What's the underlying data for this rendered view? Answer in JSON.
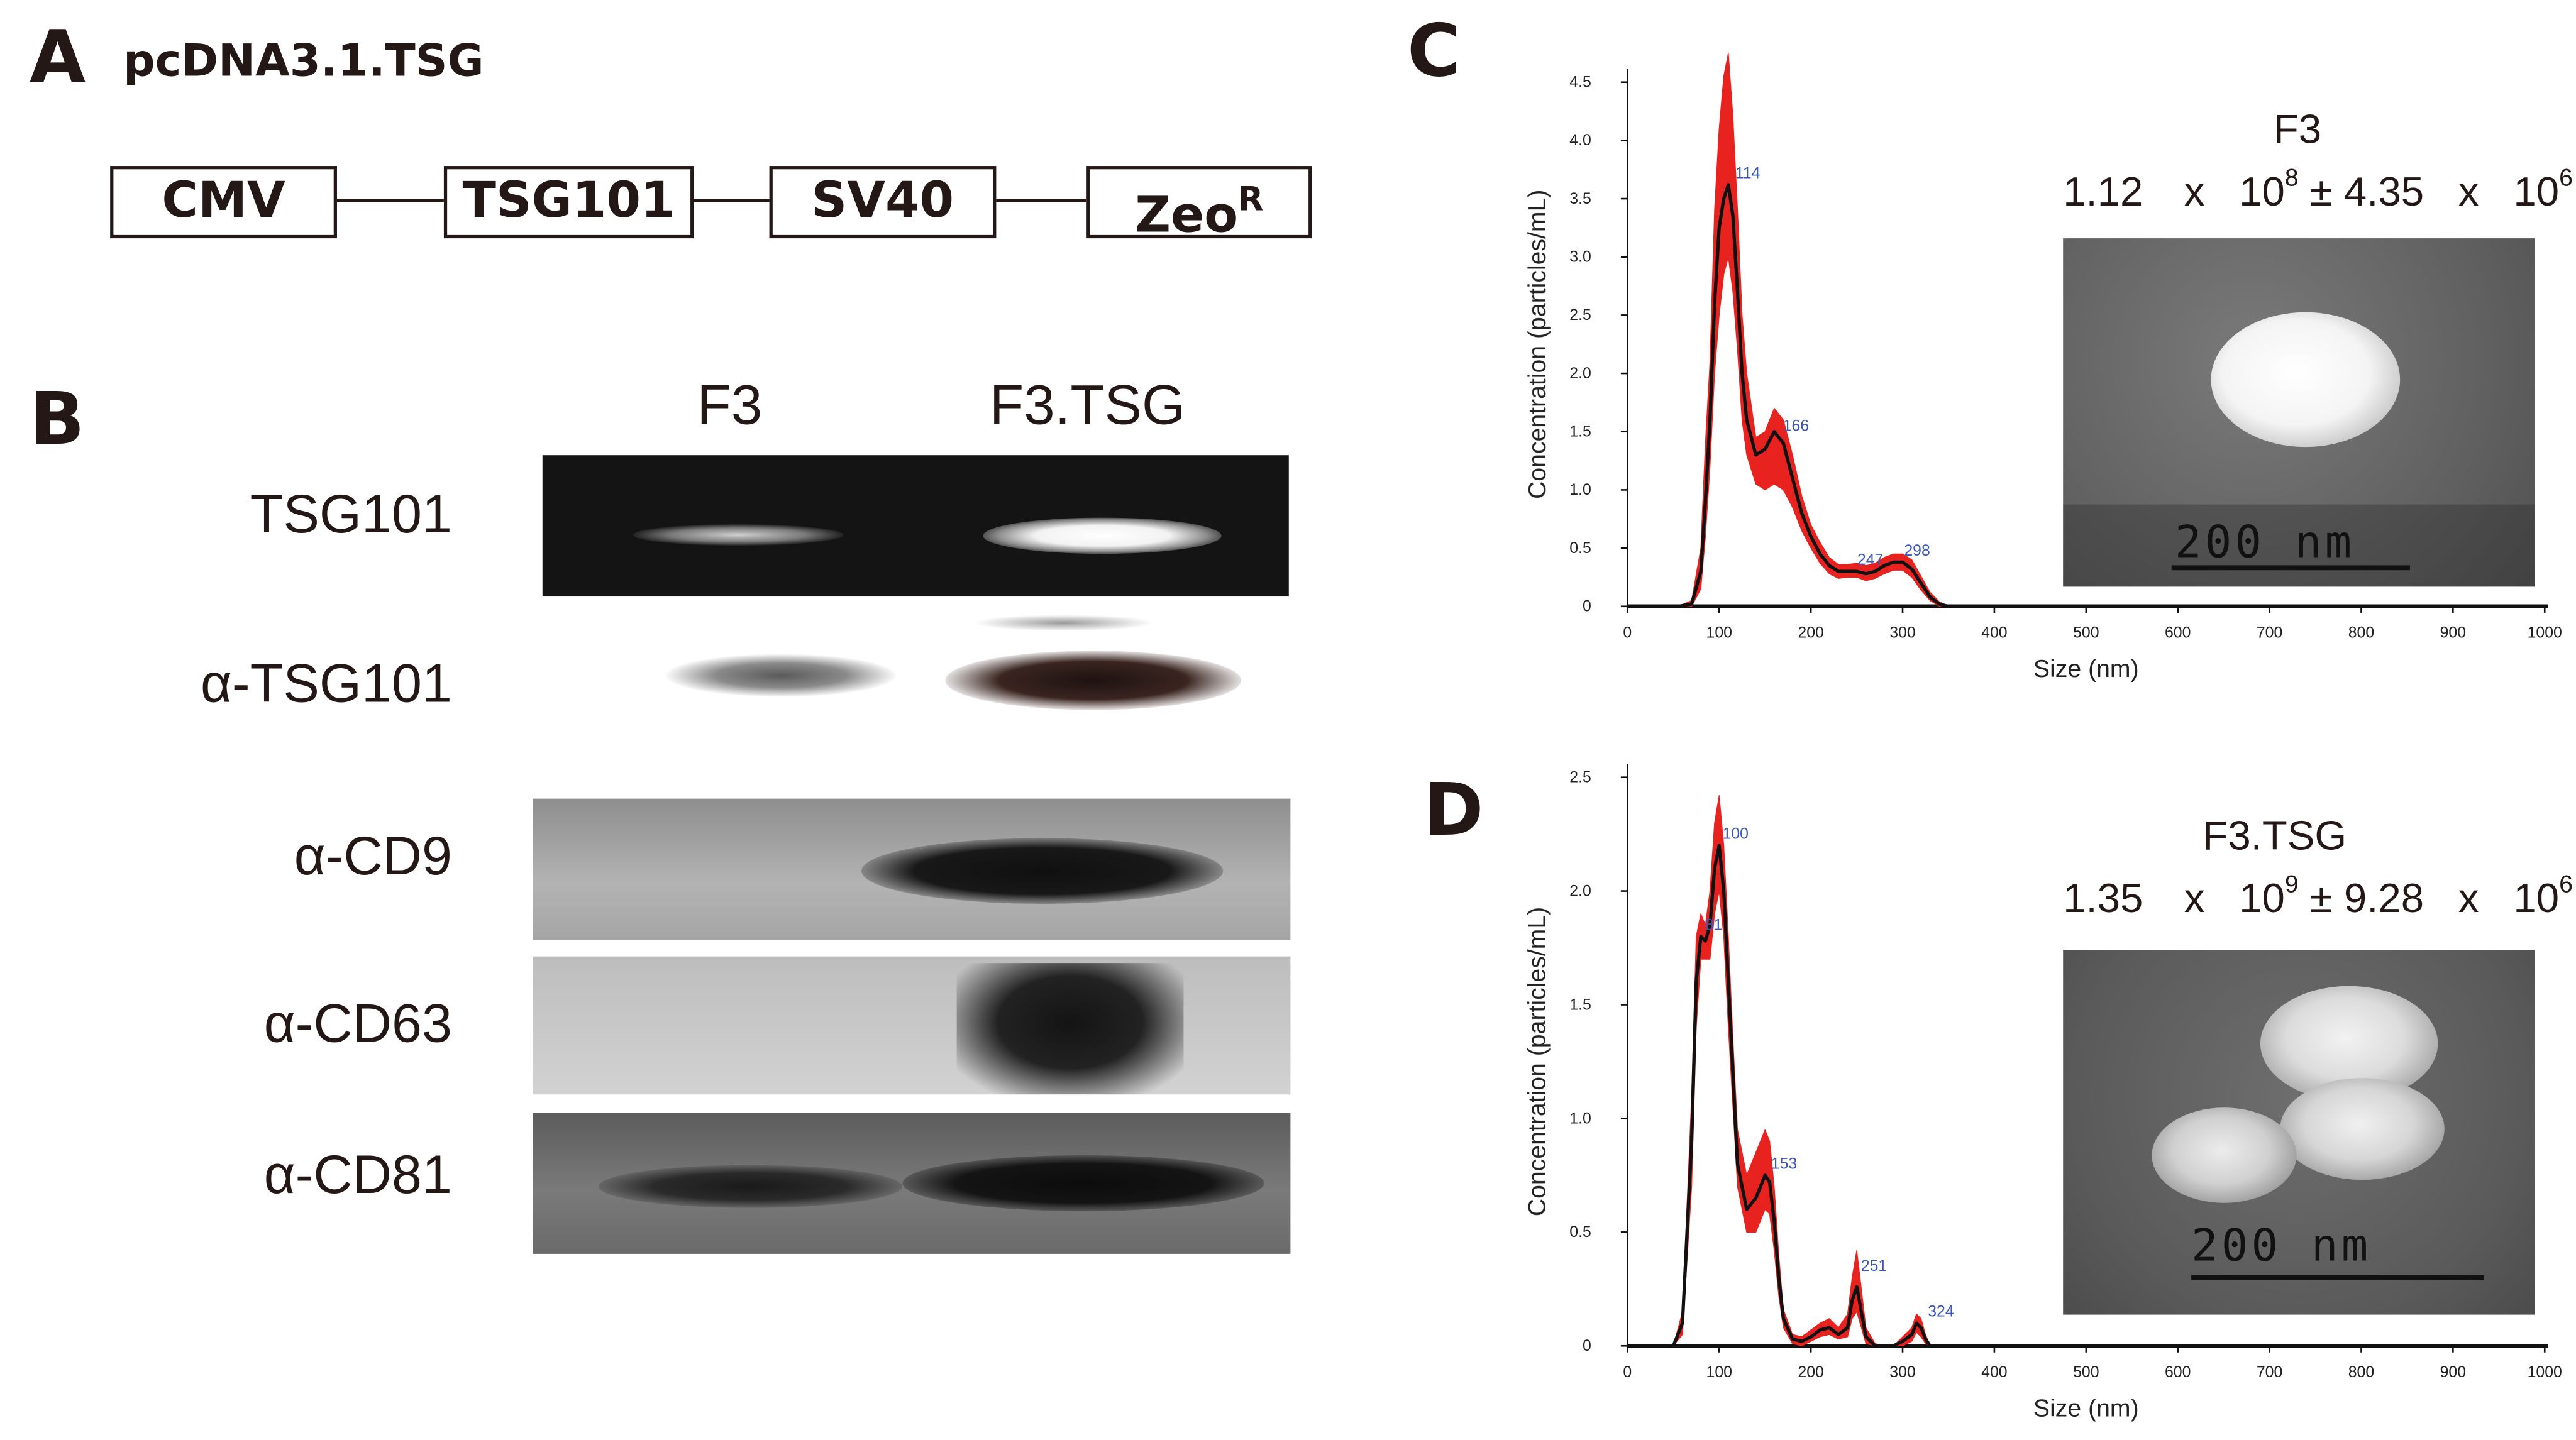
{
  "panel_a": {
    "label": "A",
    "title": "pcDNA3.1.TSG",
    "elements": [
      "CMV",
      "TSG101",
      "SV40",
      "Zeo"
    ],
    "zeo_superscript": "R"
  },
  "panel_b": {
    "label": "B",
    "lanes": [
      "F3",
      "F3.TSG"
    ],
    "rows": [
      "TSG101",
      "α-TSG101",
      "α-CD9",
      "α-CD63",
      "α-CD81"
    ]
  },
  "panel_c": {
    "label": "C",
    "sample": "F3",
    "conc_a": "1.12",
    "conc_times_1": "x",
    "conc_b_base": "10",
    "conc_b_exp": "8",
    "conc_pm": "± 4.35",
    "conc_times_2": "x",
    "conc_c_base": "10",
    "conc_c_exp": "6",
    "scale_text": "200 nm"
  },
  "panel_d": {
    "label": "D",
    "sample": "F3.TSG",
    "conc_a": "1.35",
    "conc_times_1": "x",
    "conc_b_base": "10",
    "conc_b_exp": "9",
    "conc_pm": "± 9.28",
    "conc_times_2": "x",
    "conc_c_base": "10",
    "conc_c_exp": "6",
    "scale_text": "200 nm"
  },
  "chart_data": [
    {
      "type": "line",
      "panel": "C",
      "xlabel": "Size (nm)",
      "ylabel": "Concentration (particles/mL)",
      "xlim": [
        0,
        1000
      ],
      "ylim": [
        0,
        4.5
      ],
      "xticks": [
        0,
        100,
        200,
        300,
        400,
        500,
        600,
        700,
        800,
        900,
        1000
      ],
      "yticks": [
        0,
        0.5,
        1.0,
        1.5,
        2.0,
        2.5,
        3.0,
        3.5,
        4.0,
        4.5
      ],
      "ytick_labels": [
        "0",
        "0.5",
        "1.0",
        "1.5",
        "2.0",
        "2.5",
        "3.0",
        "3.5",
        "4.0",
        "4.5"
      ],
      "colors": {
        "mean": "#111111",
        "error": "#e8231f",
        "peak_label": "#3a57b8"
      },
      "x": [
        0,
        55,
        70,
        80,
        85,
        90,
        95,
        100,
        105,
        110,
        115,
        120,
        125,
        130,
        140,
        150,
        160,
        170,
        180,
        190,
        200,
        210,
        220,
        230,
        240,
        250,
        260,
        270,
        280,
        290,
        300,
        310,
        320,
        330,
        340,
        350,
        1000
      ],
      "mean": [
        0,
        0,
        0.02,
        0.3,
        0.9,
        1.6,
        2.6,
        3.25,
        3.5,
        3.62,
        3.35,
        2.7,
        2.0,
        1.6,
        1.3,
        1.35,
        1.5,
        1.4,
        1.1,
        0.8,
        0.6,
        0.45,
        0.35,
        0.3,
        0.3,
        0.3,
        0.28,
        0.3,
        0.35,
        0.38,
        0.38,
        0.32,
        0.2,
        0.08,
        0.02,
        0,
        0
      ],
      "upper": [
        0,
        0,
        0.05,
        0.5,
        1.4,
        2.1,
        3.4,
        4.1,
        4.55,
        4.75,
        4.2,
        3.4,
        2.5,
        2.0,
        1.45,
        1.5,
        1.7,
        1.6,
        1.3,
        0.95,
        0.7,
        0.55,
        0.42,
        0.36,
        0.36,
        0.37,
        0.35,
        0.37,
        0.42,
        0.45,
        0.45,
        0.4,
        0.26,
        0.12,
        0.04,
        0,
        0
      ],
      "lower": [
        0,
        0,
        0,
        0.15,
        0.6,
        1.2,
        2.0,
        2.5,
        2.85,
        3.0,
        2.7,
        2.2,
        1.6,
        1.3,
        1.05,
        1.0,
        1.05,
        1.0,
        0.85,
        0.65,
        0.5,
        0.37,
        0.28,
        0.24,
        0.25,
        0.25,
        0.22,
        0.24,
        0.28,
        0.31,
        0.31,
        0.25,
        0.14,
        0.05,
        0,
        0,
        0
      ],
      "peaks": [
        {
          "x": 114,
          "y": 3.62,
          "label": "114"
        },
        {
          "x": 166,
          "y": 1.45,
          "label": "166"
        },
        {
          "x": 247,
          "y": 0.3,
          "label": "247"
        },
        {
          "x": 298,
          "y": 0.38,
          "label": "298"
        }
      ]
    },
    {
      "type": "line",
      "panel": "D",
      "xlabel": "Size (nm)",
      "ylabel": "Concentration (particles/mL)",
      "xlim": [
        0,
        1000
      ],
      "ylim": [
        0,
        2.5
      ],
      "xticks": [
        0,
        100,
        200,
        300,
        400,
        500,
        600,
        700,
        800,
        900,
        1000
      ],
      "yticks": [
        0,
        0.5,
        1.0,
        1.5,
        2.0,
        2.5
      ],
      "ytick_labels": [
        "0",
        "0.5",
        "1.0",
        "1.5",
        "2.0",
        "2.5"
      ],
      "colors": {
        "mean": "#111111",
        "error": "#e8231f",
        "peak_label": "#3a57b8"
      },
      "x": [
        0,
        50,
        60,
        70,
        75,
        80,
        85,
        90,
        95,
        100,
        105,
        110,
        115,
        120,
        130,
        140,
        150,
        155,
        160,
        165,
        170,
        180,
        190,
        200,
        210,
        220,
        230,
        240,
        245,
        250,
        255,
        260,
        270,
        280,
        290,
        300,
        310,
        315,
        320,
        325,
        330,
        340,
        1000
      ],
      "mean": [
        0,
        0,
        0.1,
        0.9,
        1.6,
        1.8,
        1.78,
        1.85,
        2.1,
        2.2,
        2.0,
        1.6,
        1.2,
        0.8,
        0.6,
        0.65,
        0.75,
        0.72,
        0.55,
        0.3,
        0.12,
        0.03,
        0.02,
        0.04,
        0.07,
        0.08,
        0.05,
        0.08,
        0.2,
        0.26,
        0.15,
        0.04,
        0,
        0,
        0,
        0.02,
        0.05,
        0.1,
        0.08,
        0.03,
        0,
        0,
        0
      ],
      "upper": [
        0,
        0,
        0.15,
        1.1,
        1.8,
        1.9,
        1.85,
        2.0,
        2.3,
        2.42,
        2.2,
        1.8,
        1.35,
        0.95,
        0.75,
        0.85,
        0.95,
        0.9,
        0.7,
        0.4,
        0.16,
        0.05,
        0.04,
        0.07,
        0.1,
        0.12,
        0.08,
        0.14,
        0.3,
        0.42,
        0.25,
        0.08,
        0.01,
        0,
        0,
        0.04,
        0.08,
        0.14,
        0.12,
        0.05,
        0,
        0,
        0
      ],
      "lower": [
        0,
        0,
        0.05,
        0.7,
        1.4,
        1.7,
        1.7,
        1.7,
        1.9,
        2.0,
        1.8,
        1.4,
        1.05,
        0.7,
        0.5,
        0.5,
        0.6,
        0.58,
        0.42,
        0.22,
        0.08,
        0.01,
        0,
        0.02,
        0.04,
        0.05,
        0.03,
        0.04,
        0.12,
        0.15,
        0.08,
        0.01,
        0,
        0,
        0,
        0,
        0.02,
        0.06,
        0.04,
        0.01,
        0,
        0,
        0
      ],
      "peaks": [
        {
          "x": 81,
          "y": 1.8,
          "label": "81"
        },
        {
          "x": 100,
          "y": 2.2,
          "label": "100"
        },
        {
          "x": 153,
          "y": 0.75,
          "label": "153"
        },
        {
          "x": 251,
          "y": 0.3,
          "label": "251"
        },
        {
          "x": 324,
          "y": 0.1,
          "label": "324"
        }
      ]
    }
  ]
}
